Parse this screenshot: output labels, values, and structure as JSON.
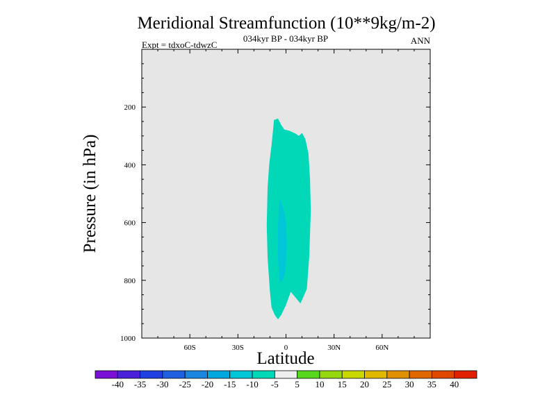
{
  "chart_data": {
    "type": "heatmap",
    "title": "Meridional Streamfunction (10**9kg/m-2)",
    "subtitle": "034kyr BP - 034kyr BP",
    "experiment_label": "Expt = tdxoC-tdwzC",
    "season_label": "ANN",
    "xlabel": "Latitude",
    "ylabel": "Pressure (in hPa)",
    "xlim": [
      -90,
      90
    ],
    "ylim": [
      1000,
      0
    ],
    "y_reversed": true,
    "x_ticks": [
      {
        "value": -60,
        "label": "60S"
      },
      {
        "value": -30,
        "label": "30S"
      },
      {
        "value": 0,
        "label": "0"
      },
      {
        "value": 30,
        "label": "30N"
      },
      {
        "value": 60,
        "label": "60N"
      }
    ],
    "y_ticks": [
      {
        "value": 200,
        "label": "200"
      },
      {
        "value": 400,
        "label": "400"
      },
      {
        "value": 600,
        "label": "600"
      },
      {
        "value": 800,
        "label": "800"
      },
      {
        "value": 1000,
        "label": "1000"
      }
    ],
    "background_color": "#e6e6e6",
    "contour_regions": [
      {
        "level": -10,
        "color": "#00d8b8",
        "outline": [
          [
            -7.5,
            245
          ],
          [
            -5,
            240
          ],
          [
            -3,
            262
          ],
          [
            -1,
            278
          ],
          [
            2,
            282
          ],
          [
            6,
            292
          ],
          [
            8,
            300
          ],
          [
            10,
            290
          ],
          [
            12,
            310
          ],
          [
            14,
            360
          ],
          [
            15,
            450
          ],
          [
            15.5,
            560
          ],
          [
            14.5,
            720
          ],
          [
            13,
            830
          ],
          [
            11,
            855
          ],
          [
            9,
            880
          ],
          [
            6,
            860
          ],
          [
            3,
            840
          ],
          [
            0,
            885
          ],
          [
            -3,
            920
          ],
          [
            -5,
            935
          ],
          [
            -7,
            920
          ],
          [
            -9,
            895
          ],
          [
            -10,
            840
          ],
          [
            -11.5,
            720
          ],
          [
            -12,
            610
          ],
          [
            -11.5,
            480
          ],
          [
            -10.5,
            400
          ],
          [
            -9,
            330
          ],
          [
            -8,
            275
          ]
        ]
      },
      {
        "level": -15,
        "color": "#00c6d8",
        "outline": [
          [
            -4,
            520
          ],
          [
            -2,
            545
          ],
          [
            0,
            600
          ],
          [
            0.5,
            680
          ],
          [
            -0.5,
            770
          ],
          [
            -2.5,
            808
          ],
          [
            -4,
            800
          ],
          [
            -5,
            720
          ],
          [
            -5,
            620
          ],
          [
            -4.5,
            560
          ]
        ]
      }
    ],
    "colorbar": {
      "levels": [
        -40,
        -35,
        -30,
        -25,
        -20,
        -15,
        -10,
        -5,
        5,
        10,
        15,
        20,
        25,
        30,
        35,
        40
      ],
      "labels": [
        "-40",
        "-35",
        "-30",
        "-25",
        "-20",
        "-15",
        "-10",
        "-5",
        "5",
        "10",
        "15",
        "20",
        "25",
        "30",
        "35",
        "40"
      ],
      "colors": [
        "#7a10d8",
        "#4a20d8",
        "#2040e0",
        "#1e60e0",
        "#1a86e0",
        "#00a8e0",
        "#00c6d8",
        "#00d8b8",
        "#eeeeee",
        "#56d81e",
        "#96d810",
        "#c8d800",
        "#e0b800",
        "#e09000",
        "#e06800",
        "#e04800",
        "#e02000"
      ]
    }
  }
}
